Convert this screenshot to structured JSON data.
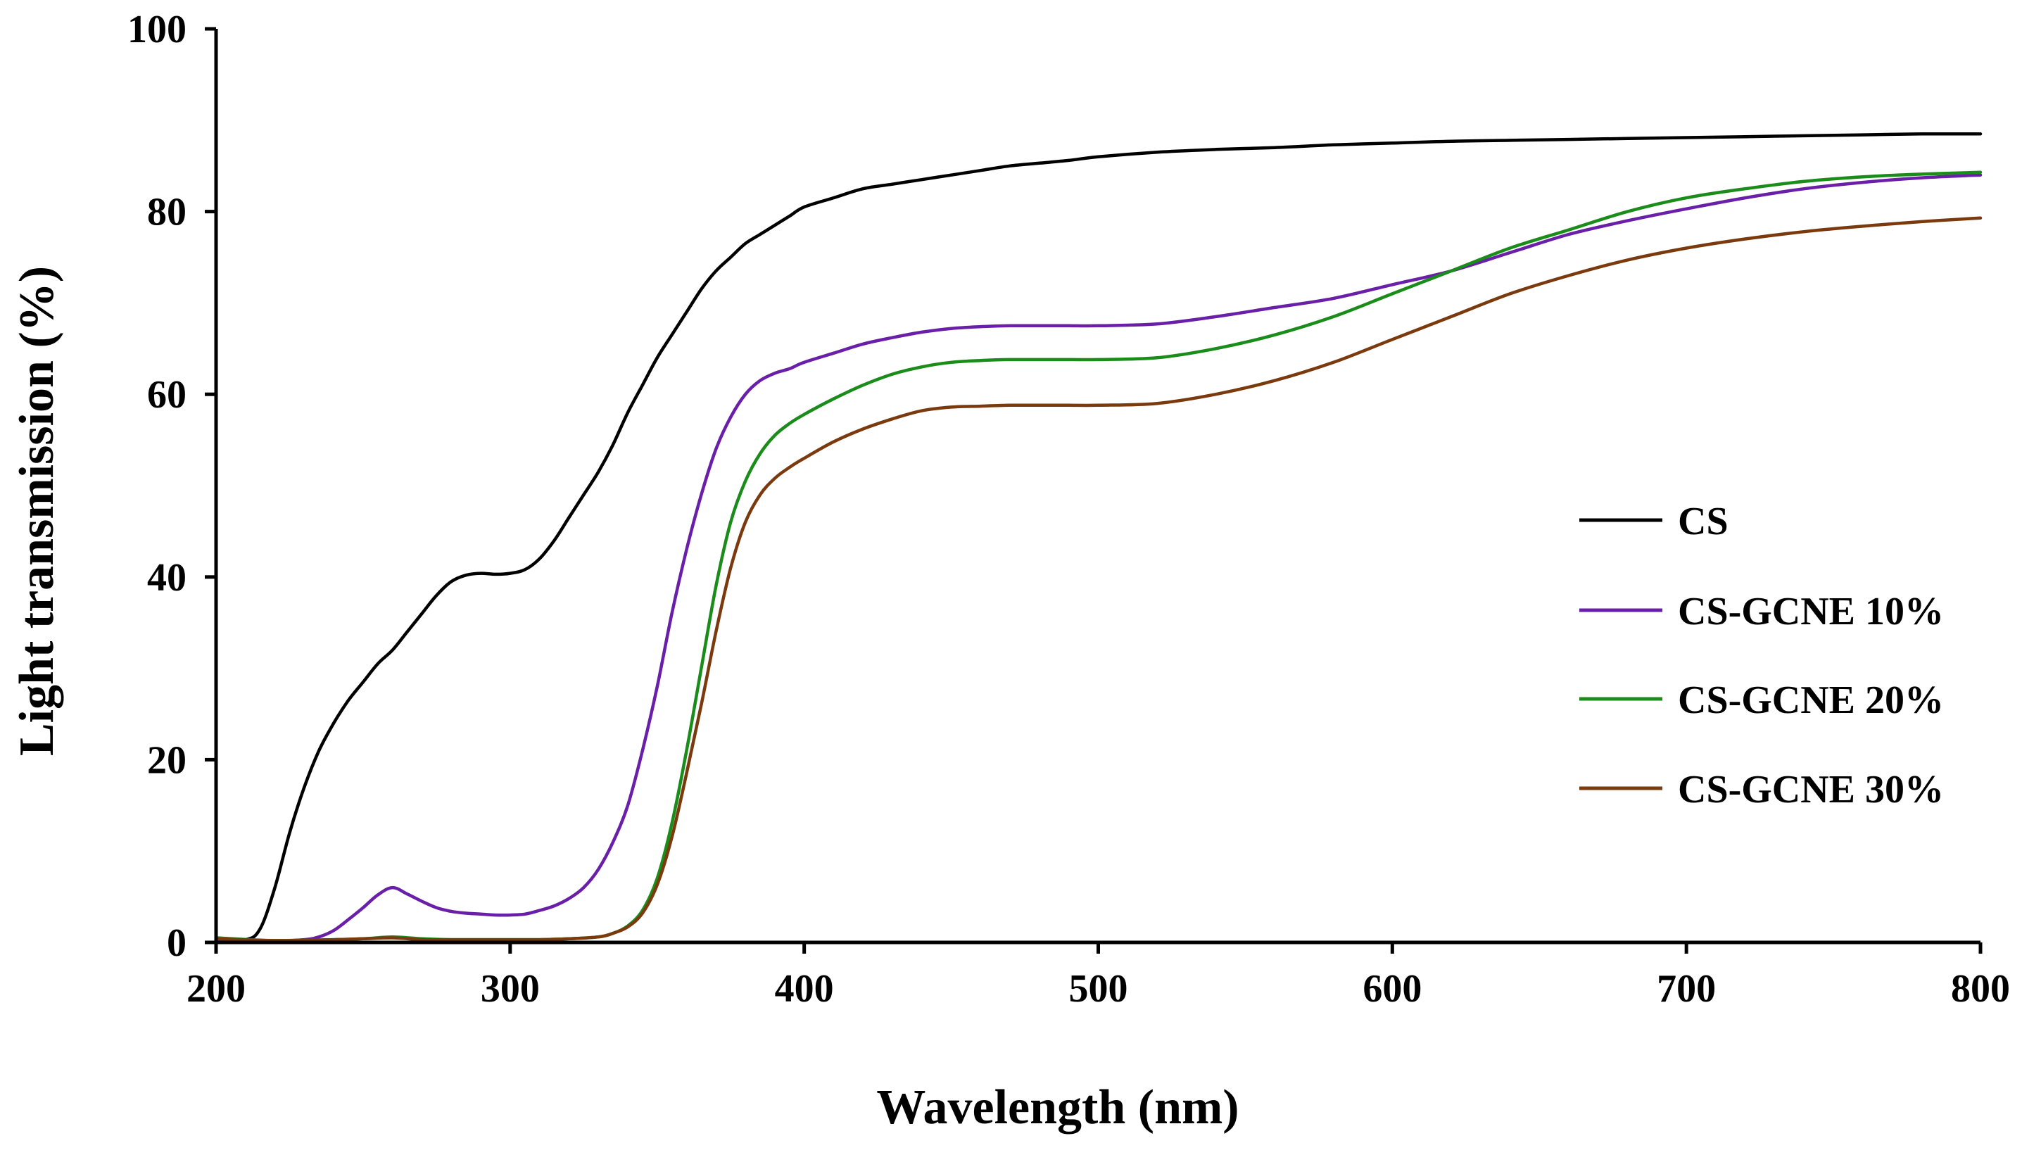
{
  "chart_data": {
    "type": "line",
    "title": "",
    "xlabel": "Wavelength (nm)",
    "ylabel": "Light transmission (%)",
    "xlim": [
      200,
      800
    ],
    "ylim": [
      0,
      100
    ],
    "xticks": [
      200,
      300,
      400,
      500,
      600,
      700,
      800
    ],
    "yticks": [
      0,
      20,
      40,
      60,
      80,
      100
    ],
    "xtick_labels": [
      "200",
      "300",
      "400",
      "500",
      "600",
      "700",
      "800"
    ],
    "ytick_labels": [
      "0",
      "20",
      "40",
      "60",
      "80",
      "100"
    ],
    "grid": false,
    "legend_position": "right",
    "series": [
      {
        "name": "CS",
        "color": "#000000",
        "x": [
          200,
          210,
          215,
          220,
          225,
          230,
          235,
          240,
          245,
          250,
          255,
          260,
          265,
          270,
          275,
          280,
          285,
          290,
          295,
          300,
          305,
          310,
          315,
          320,
          325,
          330,
          335,
          340,
          345,
          350,
          355,
          360,
          365,
          370,
          375,
          380,
          385,
          390,
          395,
          400,
          410,
          420,
          430,
          440,
          450,
          460,
          470,
          480,
          490,
          500,
          520,
          540,
          560,
          580,
          600,
          620,
          640,
          660,
          680,
          700,
          720,
          740,
          760,
          780,
          800
        ],
        "y": [
          0.5,
          0.3,
          1.5,
          6,
          12,
          17,
          21,
          24,
          26.5,
          28.5,
          30.5,
          32,
          34,
          36,
          38,
          39.5,
          40.2,
          40.4,
          40.3,
          40.4,
          40.8,
          42,
          44,
          46.5,
          49,
          51.5,
          54.5,
          58,
          61,
          64,
          66.5,
          69,
          71.5,
          73.5,
          75,
          76.5,
          77.5,
          78.5,
          79.5,
          80.5,
          81.5,
          82.5,
          83,
          83.5,
          84,
          84.5,
          85,
          85.3,
          85.6,
          86,
          86.5,
          86.8,
          87,
          87.3,
          87.5,
          87.7,
          87.8,
          87.9,
          88,
          88.1,
          88.2,
          88.3,
          88.4,
          88.5,
          88.5
        ]
      },
      {
        "name": "CS-GCNE 10%",
        "color": "#6a1fa8",
        "x": [
          200,
          220,
          230,
          235,
          240,
          245,
          250,
          255,
          260,
          265,
          270,
          275,
          280,
          285,
          290,
          295,
          300,
          305,
          310,
          315,
          320,
          325,
          330,
          335,
          340,
          345,
          350,
          355,
          360,
          365,
          370,
          375,
          380,
          385,
          390,
          395,
          400,
          410,
          420,
          430,
          440,
          450,
          460,
          470,
          480,
          490,
          500,
          520,
          540,
          560,
          580,
          600,
          620,
          640,
          660,
          680,
          700,
          720,
          740,
          760,
          780,
          800
        ],
        "y": [
          0.3,
          0.2,
          0.3,
          0.6,
          1.3,
          2.5,
          3.8,
          5.2,
          6,
          5.3,
          4.5,
          3.8,
          3.4,
          3.2,
          3.1,
          3.0,
          3.0,
          3.1,
          3.5,
          4.0,
          4.8,
          6.0,
          8.0,
          11,
          15,
          21,
          28,
          36,
          43,
          49,
          54,
          57.5,
          60,
          61.5,
          62.3,
          62.8,
          63.5,
          64.5,
          65.5,
          66.2,
          66.8,
          67.2,
          67.4,
          67.5,
          67.5,
          67.5,
          67.5,
          67.7,
          68.5,
          69.5,
          70.5,
          72,
          73.5,
          75.5,
          77.5,
          79,
          80.3,
          81.5,
          82.5,
          83.2,
          83.7,
          84
        ]
      },
      {
        "name": "CS-GCNE 20%",
        "color": "#1a8c1a",
        "x": [
          200,
          220,
          240,
          250,
          260,
          270,
          280,
          290,
          300,
          310,
          320,
          330,
          335,
          340,
          345,
          350,
          355,
          360,
          365,
          370,
          375,
          380,
          385,
          390,
          395,
          400,
          410,
          420,
          430,
          440,
          450,
          460,
          470,
          480,
          490,
          500,
          520,
          540,
          560,
          580,
          600,
          620,
          640,
          660,
          680,
          700,
          720,
          740,
          760,
          780,
          800
        ],
        "y": [
          0.5,
          0.2,
          0.3,
          0.4,
          0.6,
          0.4,
          0.3,
          0.3,
          0.3,
          0.3,
          0.4,
          0.6,
          1.0,
          1.8,
          3.5,
          7,
          13,
          21,
          30,
          39,
          46,
          50.5,
          53.5,
          55.5,
          56.8,
          57.8,
          59.5,
          61,
          62.2,
          63,
          63.5,
          63.7,
          63.8,
          63.8,
          63.8,
          63.8,
          64,
          65,
          66.5,
          68.5,
          71,
          73.5,
          76,
          78,
          80,
          81.5,
          82.5,
          83.3,
          83.8,
          84.1,
          84.3
        ]
      },
      {
        "name": "CS-GCNE 30%",
        "color": "#7b3a0e",
        "x": [
          200,
          220,
          240,
          250,
          260,
          270,
          280,
          290,
          300,
          310,
          320,
          330,
          335,
          340,
          345,
          350,
          355,
          360,
          365,
          370,
          375,
          380,
          385,
          390,
          395,
          400,
          410,
          420,
          430,
          440,
          450,
          460,
          470,
          480,
          490,
          500,
          520,
          540,
          560,
          580,
          600,
          620,
          640,
          660,
          680,
          700,
          720,
          740,
          760,
          780,
          800
        ],
        "y": [
          0.4,
          0.2,
          0.3,
          0.4,
          0.5,
          0.3,
          0.3,
          0.3,
          0.3,
          0.3,
          0.4,
          0.6,
          1.0,
          1.7,
          3.2,
          6.3,
          11.5,
          18.5,
          26,
          34,
          41,
          46,
          49,
          50.8,
          52,
          53,
          54.8,
          56.2,
          57.3,
          58.2,
          58.6,
          58.7,
          58.8,
          58.8,
          58.8,
          58.8,
          59,
          60,
          61.5,
          63.5,
          66,
          68.5,
          71,
          73,
          74.7,
          76,
          77,
          77.8,
          78.4,
          78.9,
          79.3
        ]
      }
    ]
  }
}
